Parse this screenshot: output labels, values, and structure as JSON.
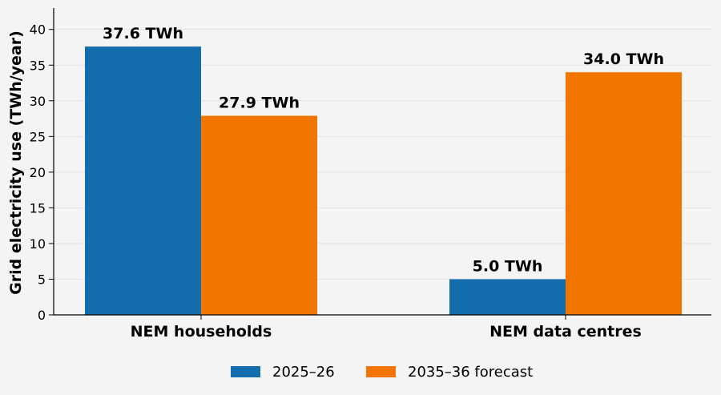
{
  "chart_data": {
    "type": "bar",
    "categories": [
      "NEM households",
      "NEM data centres"
    ],
    "series": [
      {
        "name": "2025–26",
        "values": [
          37.6,
          5.0
        ],
        "color": "#136cab",
        "labels": [
          "37.6 TWh",
          "5.0 TWh"
        ]
      },
      {
        "name": "2035–36 forecast",
        "values": [
          27.9,
          34.0
        ],
        "color": "#f27500",
        "labels": [
          "27.9 TWh",
          "34.0 TWh"
        ]
      }
    ],
    "ylabel": "Grid electricity use (TWh/year)",
    "ylim": [
      0,
      43
    ],
    "yticks": [
      0,
      5,
      10,
      15,
      20,
      25,
      30,
      35,
      40
    ],
    "grid": "y",
    "legend_position": "bottom-center"
  }
}
